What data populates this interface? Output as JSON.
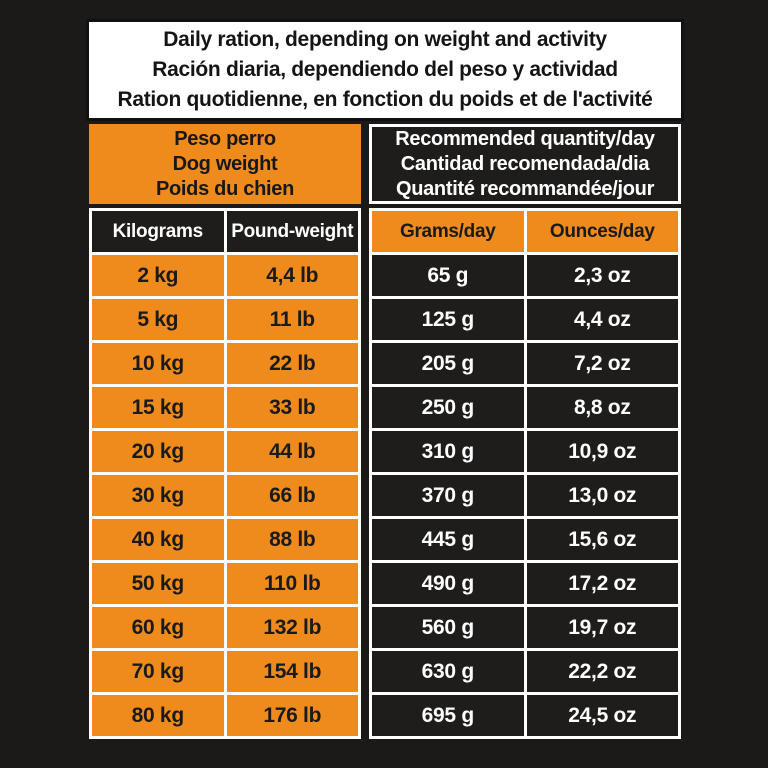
{
  "title": {
    "lines": [
      "Daily ration, depending on weight and activity",
      "Ración diaria, dependiendo del peso y actividad",
      "Ration quotidienne, en fonction du poids et de l'activité"
    ]
  },
  "left_header": {
    "lines": [
      "Peso perro",
      "Dog weight",
      "Poids du chien"
    ]
  },
  "right_header": {
    "lines": [
      "Recommended quantity/day",
      "Cantidad recomendada/dia",
      "Quantité recommandée/jour"
    ]
  },
  "columns": {
    "kilograms": "Kilograms",
    "pounds": "Pound-weight",
    "grams": "Grams/day",
    "ounces": "Ounces/day"
  },
  "rows": [
    {
      "kg": "2 kg",
      "lb": "4,4 lb",
      "g": "65 g",
      "oz": "2,3 oz"
    },
    {
      "kg": "5 kg",
      "lb": "11 lb",
      "g": "125 g",
      "oz": "4,4 oz"
    },
    {
      "kg": "10 kg",
      "lb": "22 lb",
      "g": "205 g",
      "oz": "7,2 oz"
    },
    {
      "kg": "15 kg",
      "lb": "33 lb",
      "g": "250 g",
      "oz": "8,8 oz"
    },
    {
      "kg": "20 kg",
      "lb": "44 lb",
      "g": "310 g",
      "oz": "10,9 oz"
    },
    {
      "kg": "30 kg",
      "lb": "66 lb",
      "g": "370 g",
      "oz": "13,0 oz"
    },
    {
      "kg": "40 kg",
      "lb": "88 lb",
      "g": "445 g",
      "oz": "15,6 oz"
    },
    {
      "kg": "50 kg",
      "lb": "110 lb",
      "g": "490 g",
      "oz": "17,2 oz"
    },
    {
      "kg": "60 kg",
      "lb": "132 lb",
      "g": "560 g",
      "oz": "19,7 oz"
    },
    {
      "kg": "70 kg",
      "lb": "154 lb",
      "g": "630 g",
      "oz": "22,2 oz"
    },
    {
      "kg": "80 kg",
      "lb": "176 lb",
      "g": "695 g",
      "oz": "24,5 oz"
    }
  ],
  "colors": {
    "orange": "#EF8A1C",
    "cell_black": "#1E1D1B",
    "background": "#1B1A18",
    "border_white": "#FFFFFF",
    "title_background": "#FFFFFF"
  },
  "chart_data": {
    "type": "table",
    "title": "Daily ration, depending on weight and activity",
    "column_groups": [
      "Peso perro / Dog weight / Poids du chien",
      "Recommended quantity/day / Cantidad recomendada/dia / Quantité recommandée/jour"
    ],
    "columns": [
      "Kilograms",
      "Pound-weight",
      "Grams/day",
      "Ounces/day"
    ],
    "rows": [
      [
        "2 kg",
        "4,4 lb",
        "65 g",
        "2,3 oz"
      ],
      [
        "5 kg",
        "11 lb",
        "125 g",
        "4,4 oz"
      ],
      [
        "10 kg",
        "22 lb",
        "205 g",
        "7,2 oz"
      ],
      [
        "15 kg",
        "33 lb",
        "250 g",
        "8,8 oz"
      ],
      [
        "20 kg",
        "44 lb",
        "310 g",
        "10,9 oz"
      ],
      [
        "30 kg",
        "66 lb",
        "370 g",
        "13,0 oz"
      ],
      [
        "40 kg",
        "88 lb",
        "445 g",
        "15,6 oz"
      ],
      [
        "50 kg",
        "110 lb",
        "490 g",
        "17,2 oz"
      ],
      [
        "60 kg",
        "132 lb",
        "560 g",
        "19,7 oz"
      ],
      [
        "70 kg",
        "154 lb",
        "630 g",
        "22,2 oz"
      ],
      [
        "80 kg",
        "176 lb",
        "695 g",
        "24,5 oz"
      ]
    ]
  }
}
